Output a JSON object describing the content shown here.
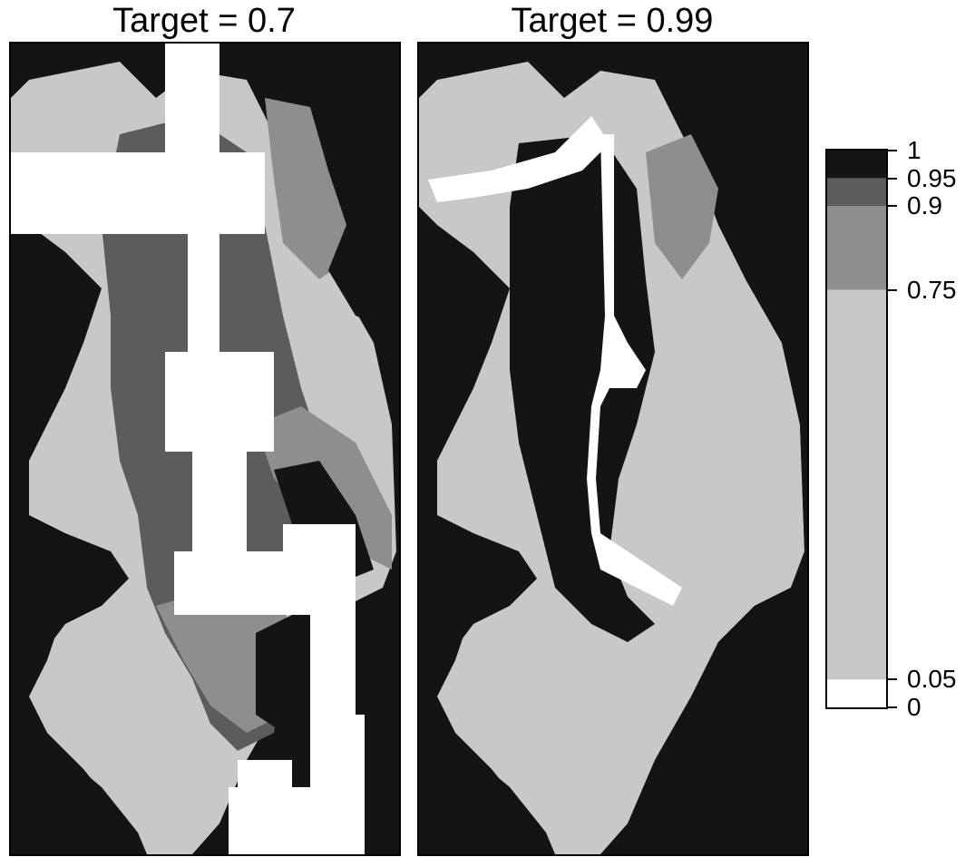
{
  "panels": [
    {
      "title": "Target = 0.7"
    },
    {
      "title": "Target = 0.99"
    }
  ],
  "colorbar": {
    "ticks": [
      "1",
      "0.95",
      "0.9",
      "0.75",
      "0.05",
      "0"
    ],
    "tick_values": [
      1,
      0.95,
      0.9,
      0.75,
      0.05,
      0
    ],
    "bands": [
      {
        "from": 0.95,
        "to": 1,
        "color": "#141414"
      },
      {
        "from": 0.9,
        "to": 0.95,
        "color": "#5c5c5c"
      },
      {
        "from": 0.75,
        "to": 0.9,
        "color": "#8e8e8e"
      },
      {
        "from": 0.05,
        "to": 0.75,
        "color": "#c8c8c8"
      },
      {
        "from": 0,
        "to": 0.05,
        "color": "#ffffff"
      }
    ]
  },
  "colors": {
    "very_high": "#141414",
    "high": "#5c5c5c",
    "mid": "#8e8e8e",
    "low": "#c8c8c8",
    "none": "#ffffff"
  }
}
